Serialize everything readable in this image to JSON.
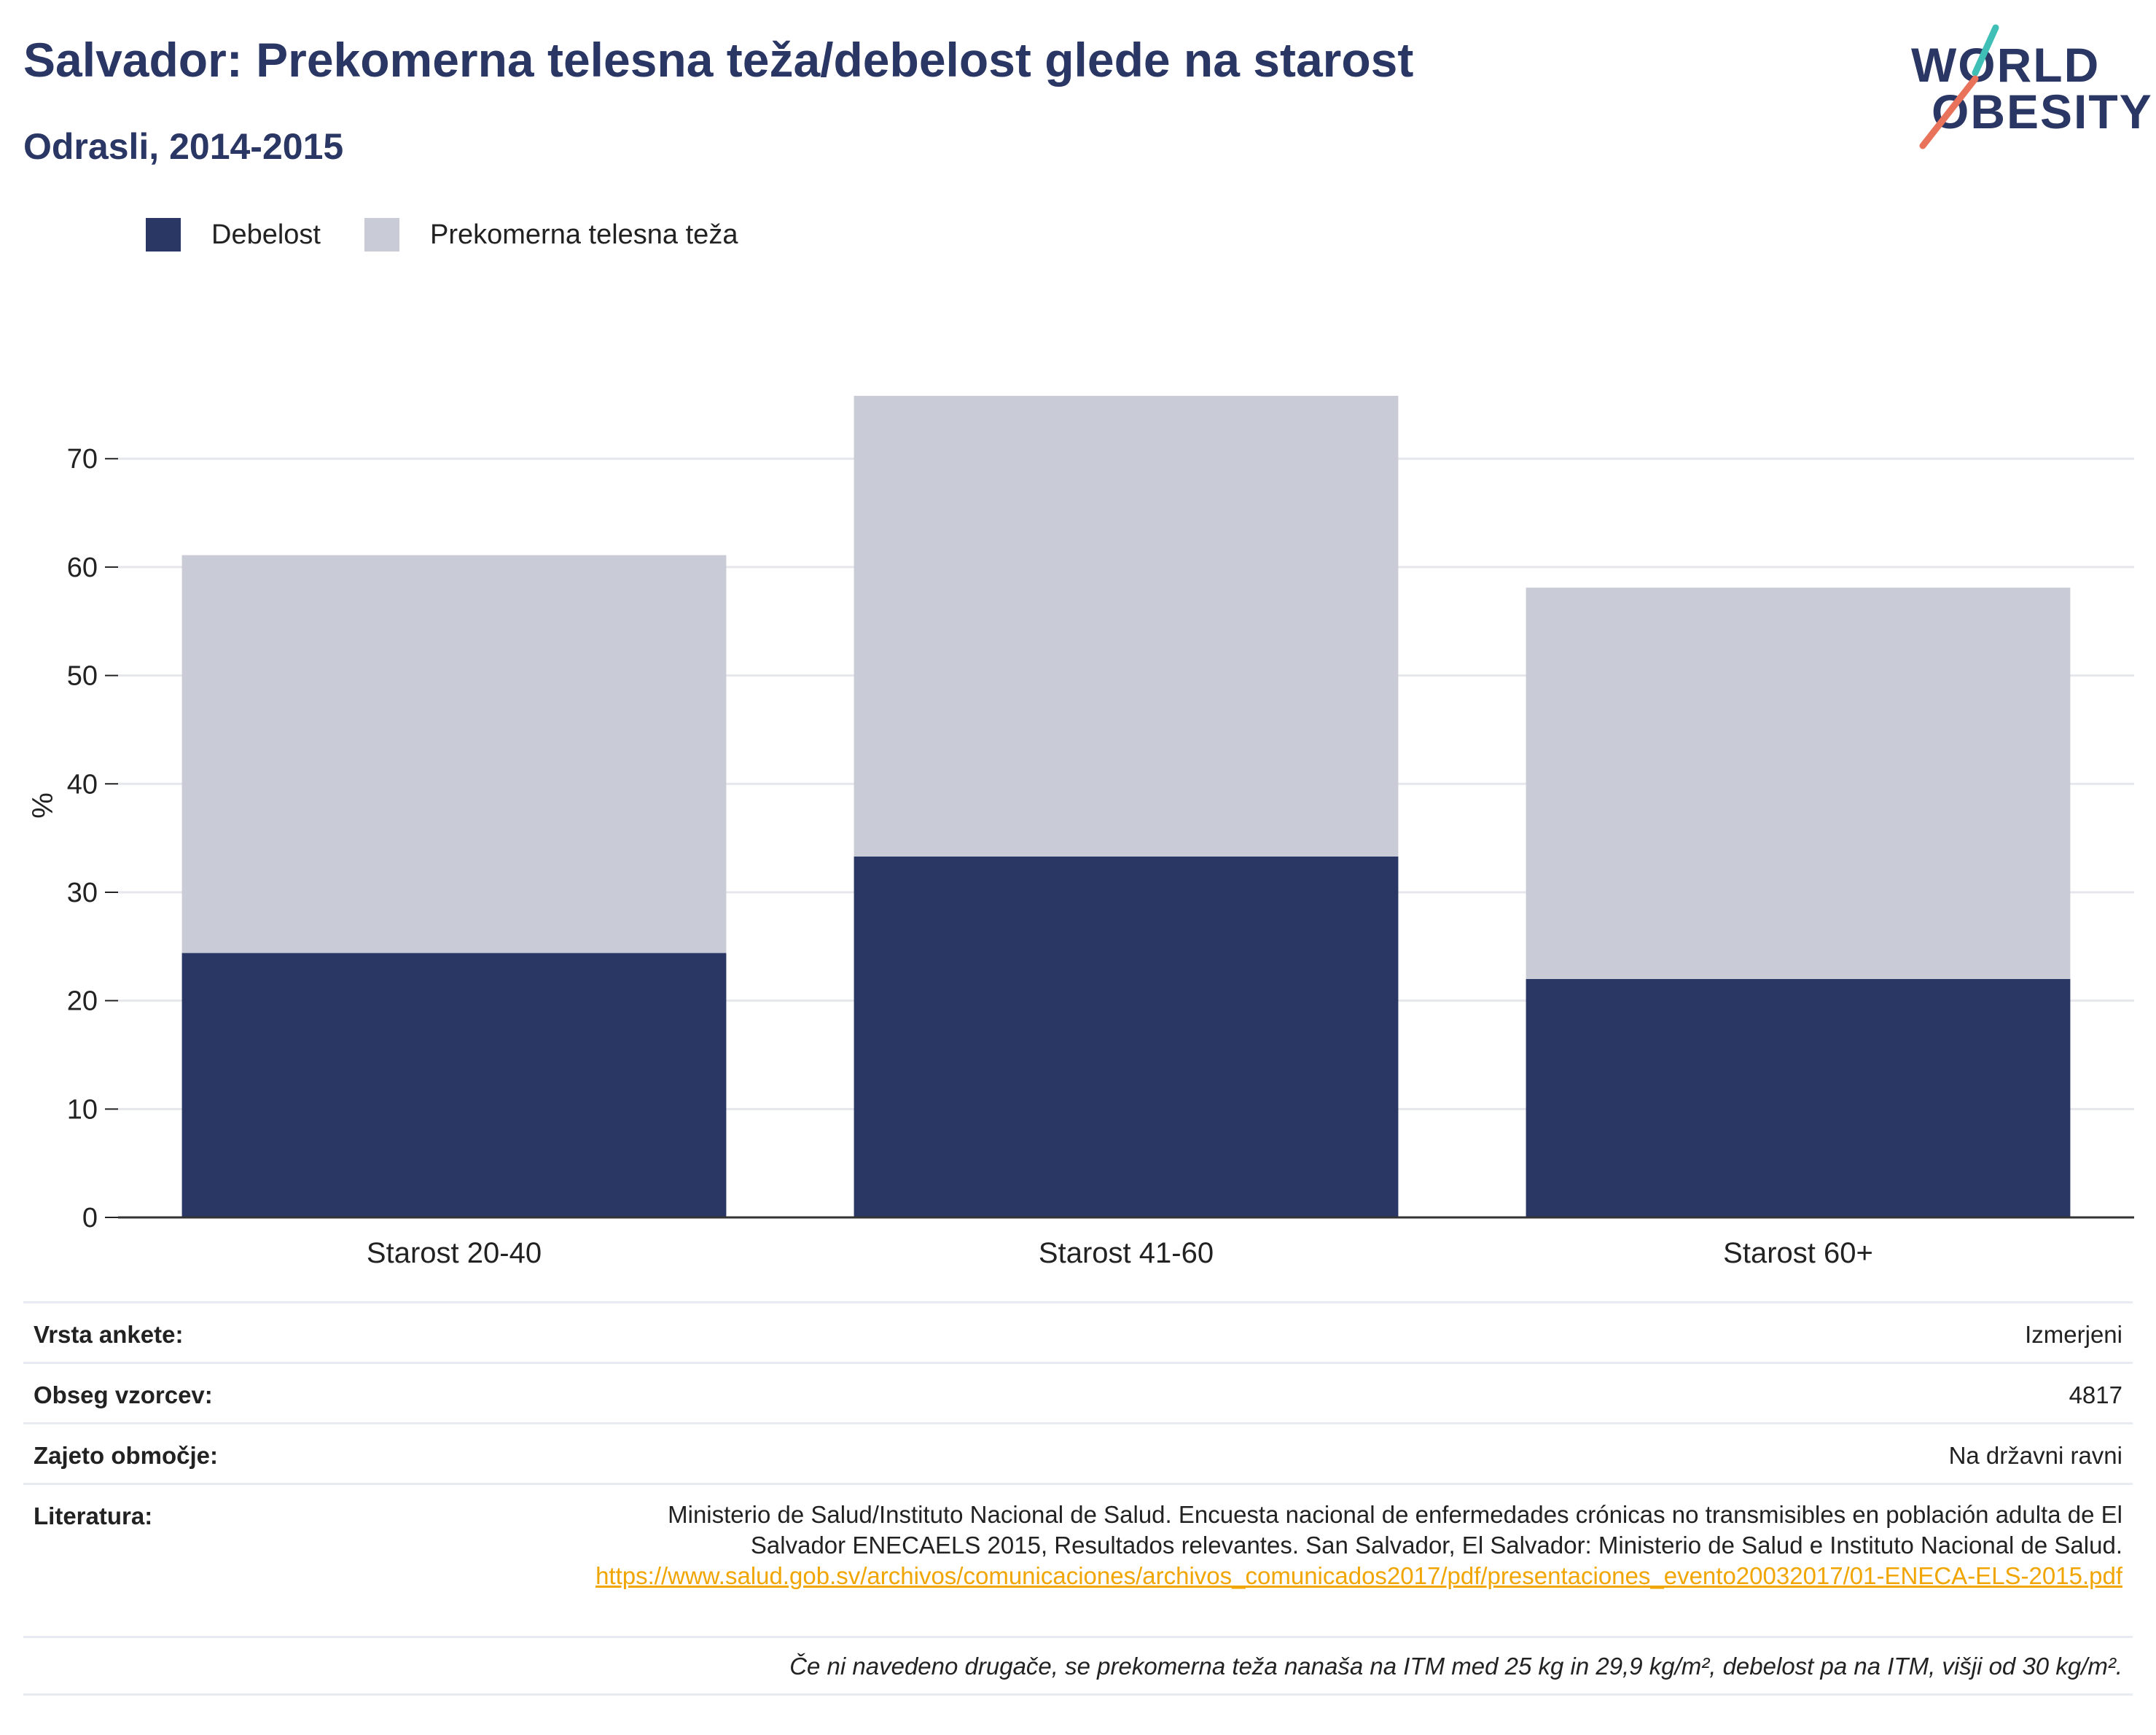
{
  "header": {
    "title": "Salvador: Prekomerna telesna teža/debelost glede na starost",
    "subtitle": "Odrasli, 2014-2015"
  },
  "logo": {
    "line1": "WORLD",
    "line2": "OBESITY",
    "accent_teal": "#3fbfb6",
    "accent_coral": "#e8735a"
  },
  "legend": [
    {
      "label": "Debelost",
      "color": "#2a3663"
    },
    {
      "label": "Prekomerna telesna teža",
      "color": "#c9cbd7"
    }
  ],
  "chart_data": {
    "type": "bar",
    "stacked": true,
    "categories": [
      "Starost 20-40",
      "Starost 41-60",
      "Starost 60+"
    ],
    "series": [
      {
        "name": "Debelost",
        "values": [
          24.4,
          33.3,
          22.0
        ],
        "color": "#2a3663"
      },
      {
        "name": "Prekomerna telesna teža",
        "values": [
          36.7,
          42.5,
          36.1
        ],
        "color": "#c9cbd7"
      }
    ],
    "xlabel": "",
    "ylabel": "%",
    "ylim": [
      0,
      76
    ],
    "yticks": [
      0,
      10,
      20,
      30,
      40,
      50,
      60,
      70
    ],
    "grid": true,
    "legend_position": "top-left"
  },
  "meta": {
    "rows": [
      {
        "key": "Vrsta ankete:",
        "value": "Izmerjeni"
      },
      {
        "key": "Obseg vzorcev:",
        "value": "4817"
      },
      {
        "key": "Zajeto območje:",
        "value": "Na državni ravni"
      }
    ],
    "literature": {
      "key": "Literatura:",
      "text": "Ministerio de Salud/Instituto Nacional de Salud. Encuesta nacional de enfermedades crónicas no transmisibles en población adulta de El Salvador ENECAELS 2015, Resultados relevantes. San Salvador, El Salvador: Ministerio de Salud e Instituto Nacional de Salud.",
      "link": "https://www.salud.gob.sv/archivos/comunicaciones/archivos_comunicados2017/pdf/presentaciones_evento20032017/01-ENECA-ELS-2015.pdf",
      "link_color": "#f0a500"
    },
    "note": "Če ni navedeno drugače, se prekomerna teža nanaša na ITM med 25 kg in 29,9 kg/m², debelost pa na ITM, višji od 30 kg/m²."
  }
}
